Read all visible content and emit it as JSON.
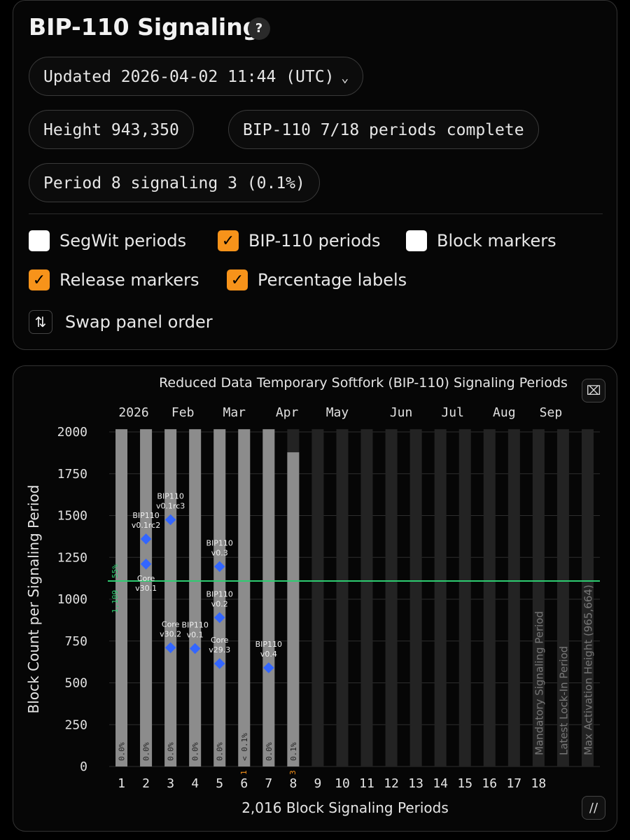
{
  "header": {
    "title": "BIP-110 Signaling",
    "help_icon": "?"
  },
  "updated": {
    "label": "Updated 2026-04-02 11:44 (UTC)"
  },
  "pills": {
    "height": "Height 943,350",
    "progress": "BIP-110 7/18 periods complete",
    "period": "Period 8 signaling 3 (0.1%)"
  },
  "options": {
    "segwit": {
      "label": "SegWit periods",
      "checked": false
    },
    "bip110": {
      "label": "BIP-110 periods",
      "checked": true
    },
    "blocks": {
      "label": "Block markers",
      "checked": false
    },
    "releases": {
      "label": "Release markers",
      "checked": true
    },
    "percent": {
      "label": "Percentage labels",
      "checked": true
    },
    "swap": {
      "label": "Swap panel order"
    }
  },
  "chart_data": {
    "type": "bar",
    "title": "Reduced Data Temporary Softfork (BIP-110) Signaling Periods",
    "xlabel": "2,016 Block Signaling Periods",
    "ylabel": "Block Count per Signaling Period",
    "ylim": [
      0,
      2000
    ],
    "yticks": [
      0,
      250,
      500,
      750,
      1000,
      1250,
      1500,
      1750,
      2000
    ],
    "categories": [
      "1",
      "2",
      "3",
      "4",
      "5",
      "6",
      "7",
      "8",
      "9",
      "10",
      "11",
      "12",
      "13",
      "14",
      "15",
      "16",
      "17",
      "18"
    ],
    "capacity": 2016,
    "values": [
      2016,
      2016,
      2016,
      2016,
      2016,
      2016,
      2016,
      1878,
      0,
      0,
      0,
      0,
      0,
      0,
      0,
      0,
      0,
      0
    ],
    "signaling_labels": [
      "0.0%",
      "0.0%",
      "0.0%",
      "0.0%",
      "0.0%",
      "< 0.1%",
      "0.0%",
      "0.1%"
    ],
    "signaling_counts": [
      "",
      "",
      "",
      "",
      "",
      "1",
      "",
      "3"
    ],
    "threshold": {
      "value": 1109,
      "label": "1,109",
      "pct": "55%"
    },
    "months": [
      {
        "label": "2026",
        "period": 1.5
      },
      {
        "label": "Feb",
        "period": 3.5
      },
      {
        "label": "Mar",
        "period": 5.6
      },
      {
        "label": "Apr",
        "period": 7.75
      },
      {
        "label": "May",
        "period": 9.8
      },
      {
        "label": "Jun",
        "period": 12.4
      },
      {
        "label": "Jul",
        "period": 14.5
      },
      {
        "label": "Aug",
        "period": 16.6
      },
      {
        "label": "Sep",
        "period": 18.5
      }
    ],
    "markers": [
      {
        "period": 2,
        "y": 1360,
        "label": [
          "BIP110",
          "v0.1rc2"
        ],
        "label_pos": "above"
      },
      {
        "period": 2,
        "y": 1210,
        "label": [
          "Core",
          "v30.1"
        ],
        "label_pos": "below"
      },
      {
        "period": 3,
        "y": 1475,
        "label": [
          "BIP110",
          "v0.1rc3"
        ],
        "label_pos": "above"
      },
      {
        "period": 3,
        "y": 710,
        "label": [
          "Core",
          "v30.2"
        ],
        "label_pos": "above"
      },
      {
        "period": 4,
        "y": 705,
        "label": [
          "BIP110",
          "v0.1"
        ],
        "label_pos": "above"
      },
      {
        "period": 5,
        "y": 1195,
        "label": [
          "BIP110",
          "v0.3"
        ],
        "label_pos": "above"
      },
      {
        "period": 5,
        "y": 890,
        "label": [
          "BIP110",
          "v0.2"
        ],
        "label_pos": "above"
      },
      {
        "period": 5,
        "y": 615,
        "label": [
          "Core",
          "v29.3"
        ],
        "label_pos": "above"
      },
      {
        "period": 7,
        "y": 590,
        "label": [
          "BIP110",
          "v0.4"
        ],
        "label_pos": "above"
      }
    ],
    "vertical_labels": [
      {
        "period": 18,
        "text": "Mandatory Signaling Period"
      },
      {
        "period": 19,
        "text": "Latest Lock-In Period"
      },
      {
        "period": 20,
        "text": "Max Activation Height (965,664)"
      }
    ],
    "colors": {
      "bar": "#8c8c8c",
      "bar_empty": "#232323",
      "threshold": "#2ecc71",
      "marker": "#3366ff",
      "signal_count": "#f7931a"
    }
  }
}
